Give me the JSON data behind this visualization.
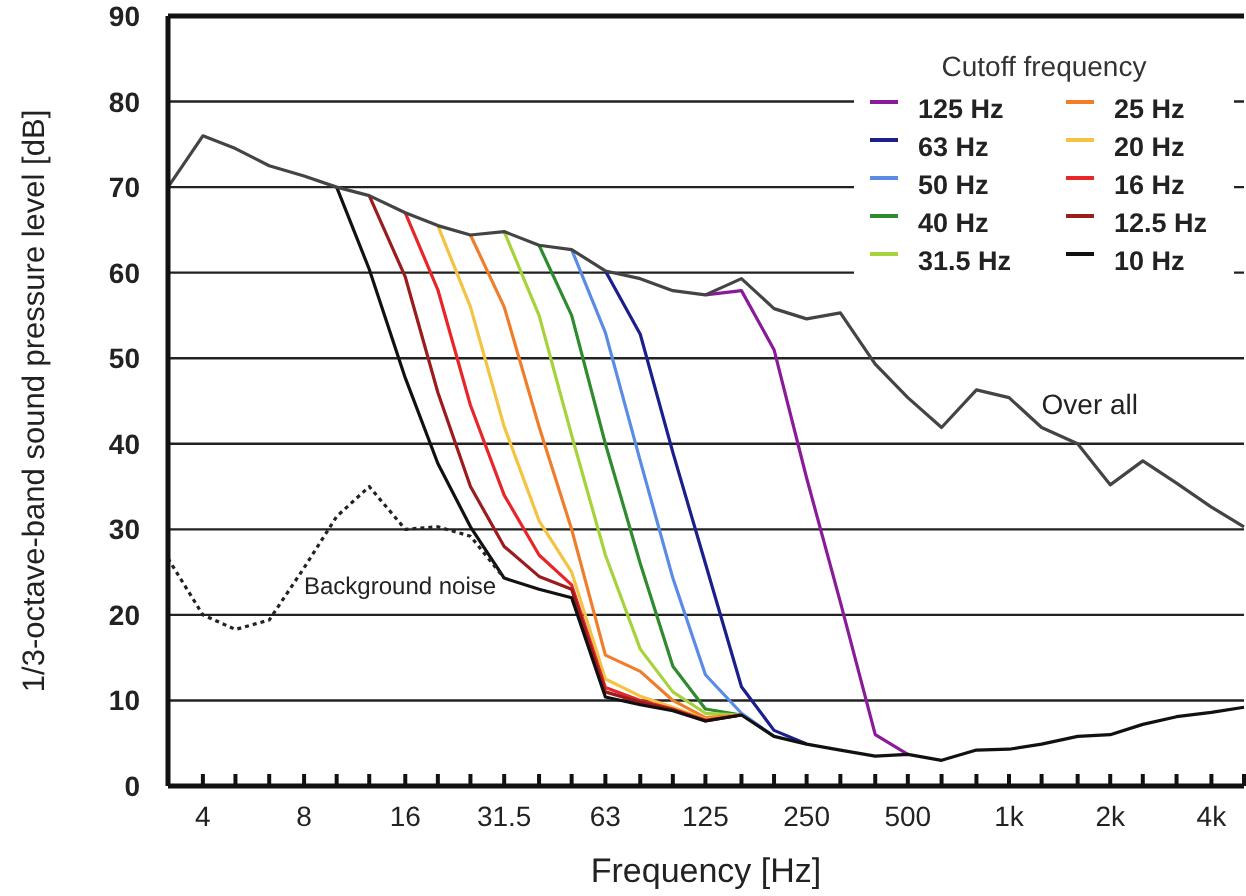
{
  "chart_data": {
    "type": "line",
    "xlabel": "Frequency [Hz]",
    "ylabel": "1/3-octave-band sound pressure level [dB]",
    "legend_title": "Cutoff frequency",
    "legend": "top right",
    "grid": "y",
    "log": "x",
    "x": [
      3.15,
      4,
      5,
      6.3,
      8,
      10,
      12.5,
      16,
      20,
      25,
      31.5,
      40,
      50,
      63,
      80,
      100,
      125,
      160,
      200,
      250,
      315,
      400,
      500,
      630,
      800,
      1000,
      1250,
      1600,
      2000,
      2500,
      3150,
      4000,
      5000
    ],
    "xlim": [
      3.15,
      5000
    ],
    "xticks": [
      {
        "value": 4,
        "label": "4"
      },
      {
        "value": 5,
        "label": null
      },
      {
        "value": 6.3,
        "label": null
      },
      {
        "value": 8,
        "label": "8"
      },
      {
        "value": 10,
        "label": null
      },
      {
        "value": 12.5,
        "label": null
      },
      {
        "value": 16,
        "label": "16"
      },
      {
        "value": 20,
        "label": null
      },
      {
        "value": 25,
        "label": null
      },
      {
        "value": 31.5,
        "label": "31.5"
      },
      {
        "value": 40,
        "label": null
      },
      {
        "value": 50,
        "label": null
      },
      {
        "value": 63,
        "label": "63"
      },
      {
        "value": 80,
        "label": null
      },
      {
        "value": 100,
        "label": null
      },
      {
        "value": 125,
        "label": "125"
      },
      {
        "value": 160,
        "label": null
      },
      {
        "value": 200,
        "label": null
      },
      {
        "value": 250,
        "label": "250"
      },
      {
        "value": 315,
        "label": null
      },
      {
        "value": 400,
        "label": null
      },
      {
        "value": 500,
        "label": "500"
      },
      {
        "value": 630,
        "label": null
      },
      {
        "value": 800,
        "label": null
      },
      {
        "value": 1000,
        "label": "1k"
      },
      {
        "value": 1250,
        "label": null
      },
      {
        "value": 1600,
        "label": null
      },
      {
        "value": 2000,
        "label": "2k"
      },
      {
        "value": 2500,
        "label": null
      },
      {
        "value": 3150,
        "label": null
      },
      {
        "value": 4000,
        "label": "4k"
      },
      {
        "value": 5000,
        "label": null
      }
    ],
    "ylim": [
      0,
      90
    ],
    "yticks": [
      0,
      10,
      20,
      30,
      40,
      50,
      60,
      70,
      80,
      90
    ],
    "annotations": [
      {
        "text": "Over all",
        "x": 1250,
        "y": 43.5
      },
      "Background noise"
    ],
    "series": [
      {
        "name": "125 Hz",
        "color": "#8b1a9b",
        "values": [
          null,
          null,
          null,
          null,
          null,
          null,
          null,
          null,
          null,
          null,
          null,
          null,
          null,
          null,
          null,
          null,
          57.4,
          57.9,
          51,
          36,
          21.5,
          6,
          3.7,
          null,
          null,
          null,
          null,
          null,
          null,
          null,
          null,
          null,
          null
        ]
      },
      {
        "name": "63 Hz",
        "color": "#1a1f8c",
        "values": [
          null,
          null,
          null,
          null,
          null,
          null,
          null,
          null,
          null,
          null,
          null,
          null,
          null,
          60.2,
          52.8,
          39,
          26,
          11.6,
          6.5,
          4.9,
          null,
          null,
          null,
          null,
          null,
          null,
          null,
          null,
          null,
          null,
          null,
          null,
          null
        ]
      },
      {
        "name": "50 Hz",
        "color": "#5a8ce6",
        "values": [
          null,
          null,
          null,
          null,
          null,
          null,
          null,
          null,
          null,
          null,
          null,
          null,
          62.7,
          53,
          38,
          24.3,
          13,
          8.5,
          5.8,
          null,
          null,
          null,
          null,
          null,
          null,
          null,
          null,
          null,
          null,
          null,
          null,
          null,
          null
        ]
      },
      {
        "name": "40 Hz",
        "color": "#2e8b2e",
        "values": [
          null,
          null,
          null,
          null,
          null,
          null,
          null,
          null,
          null,
          null,
          null,
          63.2,
          55,
          40,
          26,
          14,
          9,
          8.3,
          null,
          null,
          null,
          null,
          null,
          null,
          null,
          null,
          null,
          null,
          null,
          null,
          null,
          null,
          null
        ]
      },
      {
        "name": "31.5 Hz",
        "color": "#a6d23c",
        "values": [
          null,
          null,
          null,
          null,
          null,
          null,
          null,
          null,
          null,
          null,
          64.8,
          55,
          41,
          27,
          16,
          11,
          8.5,
          8.3,
          null,
          null,
          null,
          null,
          null,
          null,
          null,
          null,
          null,
          null,
          null,
          null,
          null,
          null,
          null
        ]
      },
      {
        "name": "25 Hz",
        "color": "#f07d2a",
        "values": [
          null,
          null,
          null,
          null,
          null,
          null,
          null,
          null,
          null,
          64.4,
          56,
          42,
          30,
          15.3,
          13.4,
          10,
          8,
          8.3,
          null,
          null,
          null,
          null,
          null,
          null,
          null,
          null,
          null,
          null,
          null,
          null,
          null,
          null,
          null
        ]
      },
      {
        "name": "20 Hz",
        "color": "#f5c342",
        "values": [
          null,
          null,
          null,
          null,
          null,
          null,
          null,
          null,
          65.5,
          56,
          42,
          31,
          25,
          12.5,
          10.5,
          9.2,
          7.8,
          8.3,
          null,
          null,
          null,
          null,
          null,
          null,
          null,
          null,
          null,
          null,
          null,
          null,
          null,
          null,
          null
        ]
      },
      {
        "name": "16 Hz",
        "color": "#e8262a",
        "values": [
          null,
          null,
          null,
          null,
          null,
          null,
          null,
          67,
          58,
          44.5,
          34,
          27,
          23.5,
          11.5,
          10,
          9,
          7.7,
          8.3,
          null,
          null,
          null,
          null,
          null,
          null,
          null,
          null,
          null,
          null,
          null,
          null,
          null,
          null,
          null
        ]
      },
      {
        "name": "12.5 Hz",
        "color": "#9b1c1c",
        "values": [
          null,
          null,
          null,
          null,
          null,
          null,
          69,
          59.5,
          46,
          35,
          28,
          24.5,
          23,
          11,
          9.8,
          8.9,
          7.6,
          8.3,
          null,
          null,
          null,
          null,
          null,
          null,
          null,
          null,
          null,
          null,
          null,
          null,
          null,
          null,
          null
        ]
      },
      {
        "name": "10 Hz",
        "color": "#111111",
        "values": [
          null,
          null,
          null,
          null,
          null,
          70,
          60.4,
          47.7,
          37.7,
          30.3,
          24.3,
          23,
          22,
          10.4,
          9.5,
          8.8,
          7.6,
          8.3,
          5.8,
          4.9,
          4.2,
          3.5,
          3.7,
          3.0,
          4.2,
          4.3,
          4.9,
          5.8,
          6.0,
          7.2,
          8.1,
          8.6,
          9.2
        ]
      },
      {
        "color": "#444444",
        "values": [
          70,
          76,
          74.5,
          72.5,
          71.3,
          70,
          69,
          67,
          65.5,
          64.4,
          64.8,
          63.2,
          62.7,
          60.2,
          59.3,
          57.9,
          57.4,
          59.3,
          55.8,
          54.6,
          55.3,
          49.3,
          45.4,
          41.9,
          46.3,
          45.4,
          41.9,
          40,
          35.2,
          38,
          35.4,
          32.6,
          30.3
        ]
      },
      {
        "color": "#222222",
        "line_style": "dotted",
        "values": [
          26.6,
          20,
          18.3,
          19.4,
          25.5,
          31.5,
          35,
          30,
          30.3,
          29.2,
          24.3,
          null,
          null,
          null,
          null,
          null,
          null,
          null,
          null,
          null,
          null,
          null,
          null,
          null,
          null,
          null,
          null,
          null,
          null,
          null,
          null,
          null,
          null
        ]
      }
    ]
  }
}
